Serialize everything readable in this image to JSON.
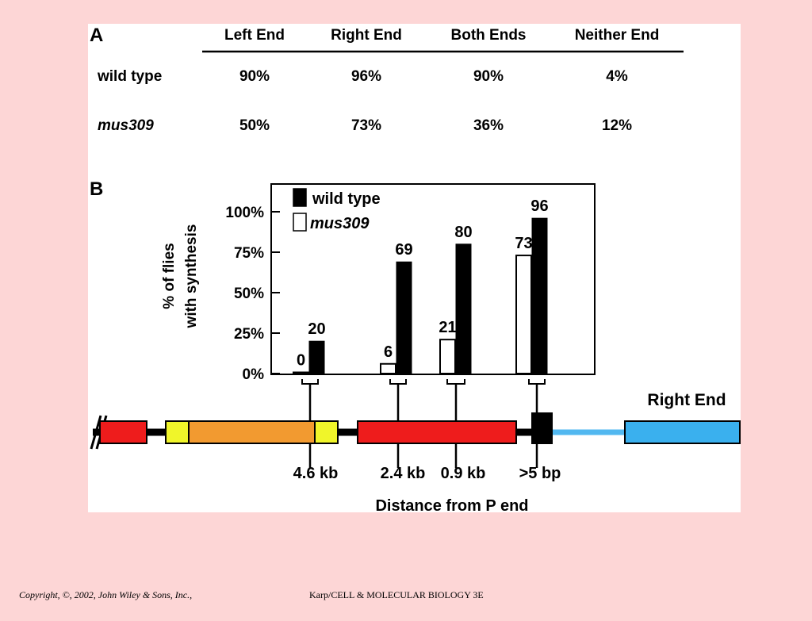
{
  "panel_a": {
    "label": "A",
    "headers": [
      "Left End",
      "Right End",
      "Both Ends",
      "Neither End"
    ],
    "rows": [
      {
        "name": "wild type",
        "values": [
          "90%",
          "96%",
          "90%",
          "4%"
        ]
      },
      {
        "name": "mus309",
        "values": [
          "50%",
          "73%",
          "36%",
          "12%"
        ]
      }
    ]
  },
  "panel_b": {
    "label": "B",
    "ylabel_line1": "% of flies",
    "ylabel_line2": "with synthesis",
    "distance_title": "Distance from P end",
    "right_end_label": "Right End"
  },
  "chart_data": {
    "type": "bar",
    "categories": [
      "4.6 kb",
      "2.4 kb",
      "0.9 kb",
      ">5 bp"
    ],
    "series": [
      {
        "name": "mus309",
        "values": [
          0,
          6,
          21,
          73
        ],
        "color": "#ffffff"
      },
      {
        "name": "wild type",
        "values": [
          20,
          69,
          80,
          96
        ],
        "color": "#000000"
      }
    ],
    "data_labels": {
      "mus309": [
        "0",
        "6",
        "21",
        "73"
      ],
      "wild type": [
        "20",
        "69",
        "80",
        "96"
      ]
    },
    "ylim": [
      0,
      100
    ],
    "yticks": [
      "0%",
      "25%",
      "50%",
      "75%",
      "100%"
    ],
    "ytick_values": [
      0,
      25,
      50,
      75,
      100
    ],
    "legend": [
      "wild type",
      "mus309"
    ],
    "legend_placement": "top-left"
  },
  "footer": {
    "copyright": "Copyright, ©, 2002, John Wiley & Sons, Inc.,",
    "source": "Karp/CELL & MOLECULAR BIOLOGY 3E"
  },
  "colors": {
    "background": "#fdd6d6",
    "red": "#ee1c1c",
    "orange": "#f29a30",
    "yellow": "#f0f52a",
    "blue": "#3ab0ee",
    "light_blue": "#52b8f0"
  }
}
